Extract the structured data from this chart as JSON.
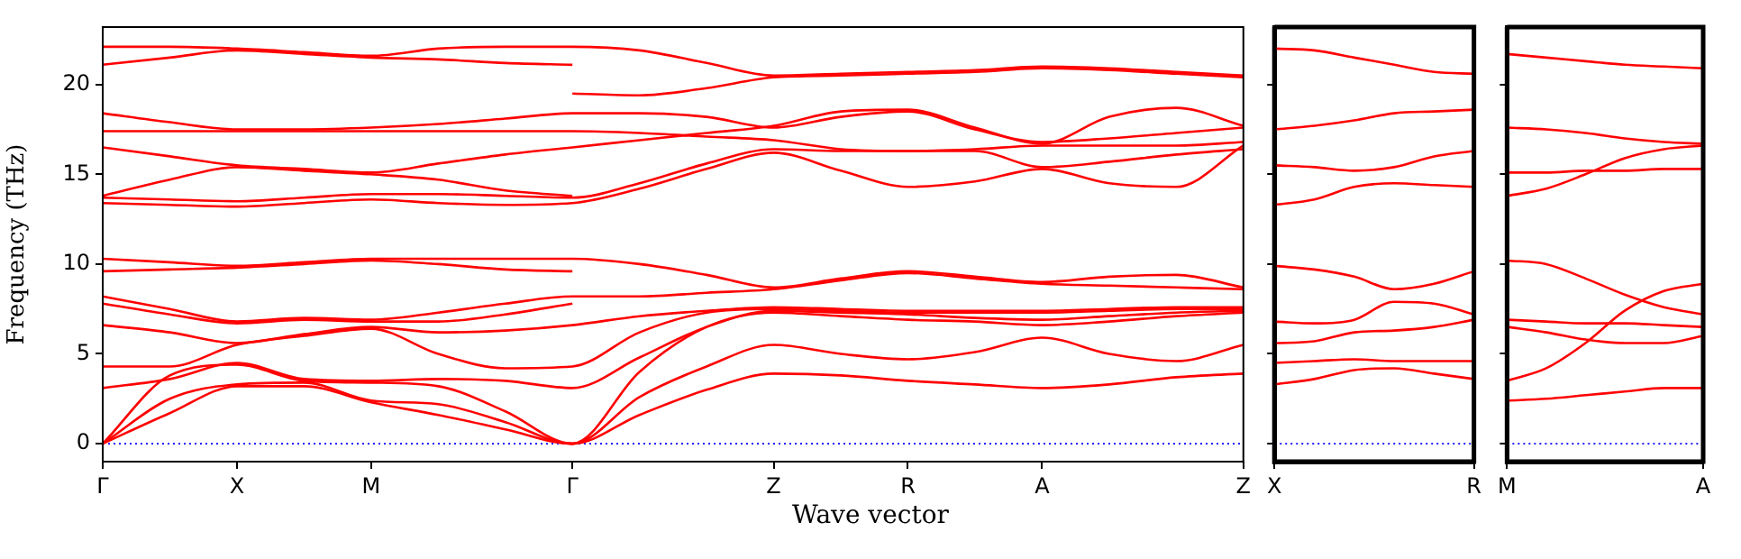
{
  "chart_data": [
    {
      "type": "line",
      "ylabel": "Frequency (THz)",
      "xlabel": "Wave vector",
      "categories": [
        "Γ",
        null,
        "X",
        null,
        "M",
        null,
        null,
        "Γ",
        null,
        null,
        "Z",
        null,
        "R",
        null,
        "A",
        null,
        null,
        "Z"
      ],
      "ylim": [
        -1,
        23.2
      ],
      "yticks": [
        0,
        5,
        10,
        15,
        20
      ],
      "grid": false,
      "legend": false,
      "marker": "none",
      "line_style": "solid",
      "ref_lines": [
        {
          "axis": "y",
          "value": 0,
          "color": "#0000ff",
          "line_style": "dotted"
        }
      ],
      "series": [
        {
          "color": "#ff0000",
          "values": [
            0,
            1.7,
            3.2,
            3.2,
            2.3,
            1.6,
            0.8,
            0,
            1.6,
            3.0,
            3.9,
            3.8,
            3.5,
            3.3,
            3.1,
            3.3,
            3.7,
            3.9
          ]
        },
        {
          "color": "#ff0000",
          "values": [
            0,
            2.5,
            3.3,
            3.4,
            2.4,
            2.2,
            1.2,
            0,
            2.6,
            4.3,
            5.5,
            5.0,
            4.7,
            5.1,
            5.9,
            5.0,
            4.6,
            5.5
          ]
        },
        {
          "color": "#ff0000",
          "values": [
            0,
            3.8,
            4.4,
            3.5,
            3.4,
            3.2,
            1.8,
            0,
            4.0,
            6.5,
            7.3,
            7.1,
            6.9,
            6.8,
            6.6,
            6.8,
            7.1,
            7.3
          ]
        },
        {
          "color": "#ff0000",
          "values": [
            3.1,
            3.6,
            4.5,
            3.6,
            3.5,
            3.6,
            3.5,
            3.1,
            4.8,
            6.5,
            7.4,
            7.3,
            7.2,
            7.0,
            6.9,
            7.1,
            7.3,
            7.4
          ]
        },
        {
          "color": "#ff0000",
          "values": [
            4.3,
            4.3,
            5.5,
            6.0,
            6.4,
            5.0,
            4.2,
            4.3,
            6.2,
            7.3,
            7.5,
            7.4,
            7.3,
            7.3,
            7.3,
            7.4,
            7.5,
            7.5
          ]
        },
        {
          "color": "#ff0000",
          "values": [
            6.6,
            6.2,
            5.6,
            6.1,
            6.5,
            6.2,
            6.3,
            6.6,
            7.1,
            7.4,
            7.6,
            7.5,
            7.4,
            7.4,
            7.4,
            7.5,
            7.6,
            7.6
          ]
        },
        {
          "color": "#ff0000",
          "values": [
            7.8,
            7.2,
            6.7,
            6.9,
            6.8,
            6.8,
            7.2,
            7.8,
            null,
            null,
            null,
            null,
            null,
            null,
            null,
            null,
            null,
            null
          ]
        },
        {
          "color": "#ff0000",
          "values": [
            8.2,
            7.5,
            6.8,
            7.0,
            6.9,
            7.3,
            7.8,
            8.2,
            8.2,
            8.4,
            8.6,
            9.1,
            9.5,
            9.2,
            8.9,
            8.8,
            8.7,
            8.6
          ]
        },
        {
          "color": "#ff0000",
          "values": [
            9.6,
            9.7,
            9.8,
            10.0,
            10.2,
            10.0,
            9.7,
            9.6,
            null,
            null,
            null,
            null,
            null,
            null,
            null,
            null,
            null,
            null
          ]
        },
        {
          "color": "#ff0000",
          "values": [
            10.3,
            10.1,
            9.9,
            10.1,
            10.3,
            10.3,
            10.3,
            10.3,
            10.0,
            9.4,
            8.7,
            9.2,
            9.6,
            9.3,
            9.0,
            9.3,
            9.4,
            8.7
          ]
        },
        {
          "color": "#ff0000",
          "values": [
            13.4,
            13.3,
            13.2,
            13.4,
            13.6,
            13.4,
            13.3,
            13.4,
            14.2,
            15.3,
            16.2,
            15.2,
            14.3,
            14.6,
            15.3,
            14.5,
            14.3,
            16.6
          ]
        },
        {
          "color": "#ff0000",
          "values": [
            13.7,
            13.6,
            13.5,
            13.7,
            13.9,
            13.9,
            13.8,
            13.7,
            14.5,
            15.6,
            16.4,
            16.3,
            16.3,
            16.3,
            15.4,
            15.7,
            16.1,
            16.4
          ]
        },
        {
          "color": "#ff0000",
          "values": [
            13.8,
            14.7,
            15.4,
            15.2,
            15.0,
            14.7,
            14.1,
            13.8,
            null,
            null,
            null,
            null,
            null,
            null,
            null,
            null,
            null,
            null
          ]
        },
        {
          "color": "#ff0000",
          "values": [
            16.5,
            16.0,
            15.5,
            15.3,
            15.1,
            15.6,
            16.1,
            16.5,
            16.9,
            17.3,
            17.7,
            18.5,
            18.6,
            17.6,
            16.7,
            18.2,
            18.7,
            17.7
          ]
        },
        {
          "color": "#ff0000",
          "values": [
            17.4,
            17.4,
            17.4,
            17.4,
            17.4,
            17.4,
            17.4,
            17.4,
            17.3,
            17.1,
            16.9,
            16.4,
            16.3,
            16.4,
            16.6,
            16.6,
            16.6,
            16.8
          ]
        },
        {
          "color": "#ff0000",
          "values": [
            18.4,
            17.9,
            17.5,
            17.5,
            17.6,
            17.8,
            18.1,
            18.4,
            18.4,
            18.2,
            17.6,
            18.2,
            18.5,
            17.5,
            16.8,
            17.0,
            17.3,
            17.6
          ]
        },
        {
          "color": "#ff0000",
          "values": [
            21.1,
            21.5,
            21.9,
            21.7,
            21.5,
            21.4,
            21.2,
            21.1,
            null,
            null,
            null,
            null,
            null,
            null,
            null,
            null,
            null,
            null
          ]
        },
        {
          "color": "#ff0000",
          "values": [
            22.1,
            22.1,
            22.0,
            21.8,
            21.6,
            22.0,
            22.1,
            22.1,
            21.9,
            21.2,
            20.5,
            20.6,
            20.7,
            20.8,
            21.0,
            20.9,
            20.7,
            20.5
          ]
        },
        {
          "color": "#ff0000",
          "values": [
            null,
            null,
            null,
            null,
            null,
            null,
            null,
            19.5,
            19.4,
            19.8,
            20.4,
            20.5,
            20.6,
            20.7,
            20.9,
            20.8,
            20.6,
            20.4
          ]
        }
      ]
    },
    {
      "type": "line",
      "categories": [
        "X",
        null,
        null,
        null,
        null,
        "R"
      ],
      "ylim": [
        -1,
        23.2
      ],
      "yticks": [
        0,
        5,
        10,
        15,
        20
      ],
      "tick_labels": "x",
      "grid": false,
      "legend": false,
      "marker": "none",
      "line_style": "solid",
      "ref_lines": [
        {
          "axis": "y",
          "value": 0,
          "color": "#0000ff",
          "line_style": "dotted"
        }
      ],
      "series": [
        {
          "color": "#ff0000",
          "values": [
            22.0,
            21.9,
            21.5,
            21.1,
            20.7,
            20.6
          ]
        },
        {
          "color": "#ff0000",
          "values": [
            17.5,
            17.7,
            18.0,
            18.4,
            18.5,
            18.6
          ]
        },
        {
          "color": "#ff0000",
          "values": [
            15.5,
            15.4,
            15.2,
            15.4,
            16.0,
            16.3
          ]
        },
        {
          "color": "#ff0000",
          "values": [
            13.3,
            13.6,
            14.3,
            14.5,
            14.4,
            14.3
          ]
        },
        {
          "color": "#ff0000",
          "values": [
            9.9,
            9.7,
            9.3,
            8.6,
            8.9,
            9.6
          ]
        },
        {
          "color": "#ff0000",
          "values": [
            6.8,
            6.7,
            6.9,
            7.9,
            7.8,
            7.2
          ]
        },
        {
          "color": "#ff0000",
          "values": [
            5.6,
            5.7,
            6.2,
            6.3,
            6.5,
            6.9
          ]
        },
        {
          "color": "#ff0000",
          "values": [
            4.5,
            4.6,
            4.7,
            4.6,
            4.6,
            4.6
          ]
        },
        {
          "color": "#ff0000",
          "values": [
            3.3,
            3.6,
            4.1,
            4.2,
            3.9,
            3.6
          ]
        }
      ]
    },
    {
      "type": "line",
      "categories": [
        "M",
        null,
        null,
        null,
        null,
        "A"
      ],
      "ylim": [
        -1,
        23.2
      ],
      "yticks": [
        0,
        5,
        10,
        15,
        20
      ],
      "tick_labels": "x",
      "grid": false,
      "legend": false,
      "marker": "none",
      "line_style": "solid",
      "ref_lines": [
        {
          "axis": "y",
          "value": 0,
          "color": "#0000ff",
          "line_style": "dotted"
        }
      ],
      "series": [
        {
          "color": "#ff0000",
          "values": [
            21.7,
            21.5,
            21.3,
            21.1,
            21.0,
            20.9
          ]
        },
        {
          "color": "#ff0000",
          "values": [
            17.6,
            17.5,
            17.3,
            17.0,
            16.8,
            16.7
          ]
        },
        {
          "color": "#ff0000",
          "values": [
            15.1,
            15.1,
            15.2,
            15.2,
            15.3,
            15.3
          ]
        },
        {
          "color": "#ff0000",
          "values": [
            13.8,
            14.2,
            15.0,
            15.9,
            16.4,
            16.6
          ]
        },
        {
          "color": "#ff0000",
          "values": [
            10.2,
            10.0,
            9.2,
            8.3,
            7.6,
            7.2
          ]
        },
        {
          "color": "#ff0000",
          "values": [
            6.9,
            6.8,
            6.7,
            6.7,
            6.6,
            6.5
          ]
        },
        {
          "color": "#ff0000",
          "values": [
            6.5,
            6.2,
            5.8,
            5.6,
            5.6,
            6.0
          ]
        },
        {
          "color": "#ff0000",
          "values": [
            3.5,
            4.2,
            5.6,
            7.4,
            8.5,
            8.9
          ]
        },
        {
          "color": "#ff0000",
          "values": [
            2.4,
            2.5,
            2.7,
            2.9,
            3.1,
            3.1
          ]
        }
      ]
    }
  ]
}
